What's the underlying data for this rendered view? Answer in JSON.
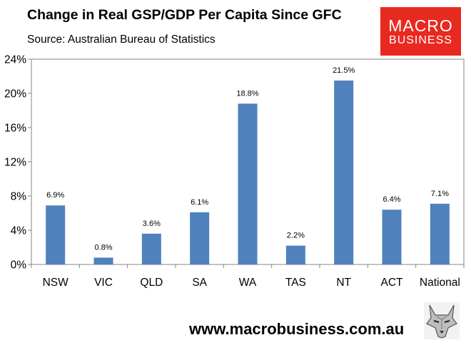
{
  "header": {
    "title": "Change in Real GSP/GDP Per Capita Since GFC",
    "subtitle": "Source: Australian Bureau of Statistics"
  },
  "logo": {
    "line1": "MACRO",
    "line2": "BUSINESS",
    "color": "#e8291f"
  },
  "footer": {
    "url": "www.macrobusiness.com.au",
    "emblem_icon": "wolf-icon"
  },
  "chart_data": {
    "type": "bar",
    "title": "Change in Real GSP/GDP Per Capita Since GFC",
    "xlabel": "",
    "ylabel": "",
    "categories": [
      "NSW",
      "VIC",
      "QLD",
      "SA",
      "WA",
      "TAS",
      "NT",
      "ACT",
      "National"
    ],
    "values": [
      6.9,
      0.8,
      3.6,
      6.1,
      18.8,
      2.2,
      21.5,
      6.4,
      7.1
    ],
    "data_labels": [
      "6.9%",
      "0.8%",
      "3.6%",
      "6.1%",
      "18.8%",
      "2.2%",
      "21.5%",
      "6.4%",
      "7.1%"
    ],
    "ylim": [
      0,
      24
    ],
    "yticks": [
      0,
      4,
      8,
      12,
      16,
      20,
      24
    ],
    "ytick_labels": [
      "0%",
      "4%",
      "8%",
      "12%",
      "16%",
      "20%",
      "24%"
    ],
    "grid": false,
    "legend": "none",
    "bar_color": "#4f81bd",
    "axis_color": "#868686"
  }
}
